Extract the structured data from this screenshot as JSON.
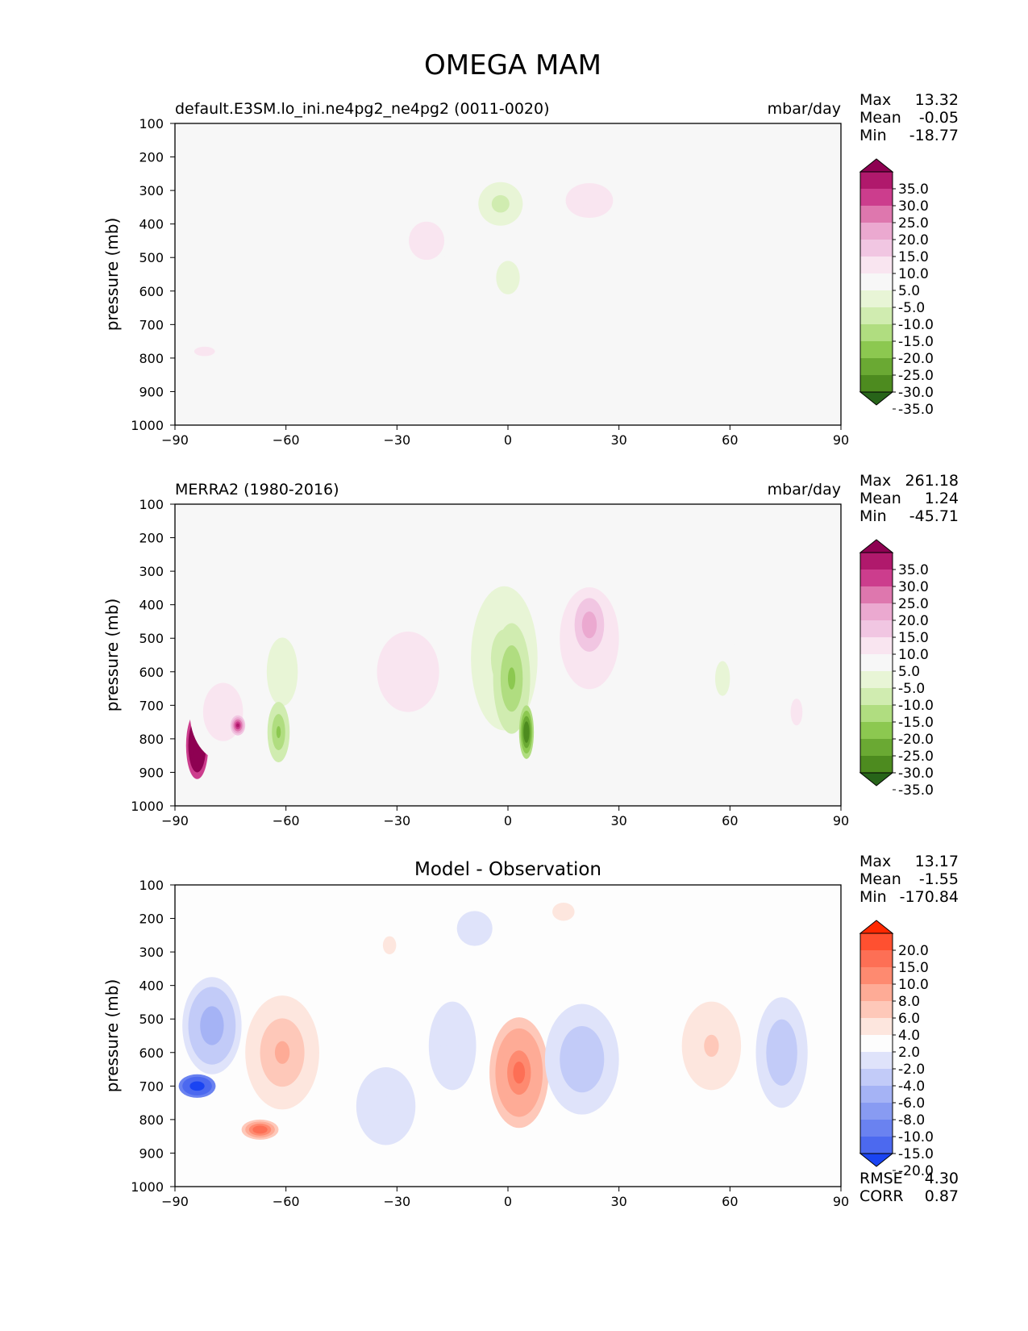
{
  "figure": {
    "title": "OMEGA MAM"
  },
  "chart_data": [
    {
      "type": "heatmap",
      "title": "default.E3SM.lo_ini.ne4pg2_ne4pg2 (0011-0020)",
      "units": "mbar/day",
      "ylabel": "pressure (mb)",
      "xlim": [
        -90,
        90
      ],
      "ylim": [
        1000,
        100
      ],
      "xticks": [
        "−90",
        "−60",
        "−30",
        "0",
        "30",
        "60",
        "90"
      ],
      "yticks": [
        "100",
        "200",
        "300",
        "400",
        "500",
        "600",
        "700",
        "800",
        "900",
        "1000"
      ],
      "stats": [
        {
          "label": "Max",
          "value": "13.32"
        },
        {
          "label": "Mean",
          "value": "-0.05"
        },
        {
          "label": "Min",
          "value": "-18.77"
        }
      ],
      "colorbar": {
        "levels": [
          "35.0",
          "30.0",
          "25.0",
          "20.0",
          "15.0",
          "10.0",
          "5.0",
          "-5.0",
          "-10.0",
          "-15.0",
          "-20.0",
          "-25.0",
          "-30.0",
          "-35.0"
        ],
        "colors": [
          "#8e0152",
          "#b0196c",
          "#cc3d8d",
          "#de77ae",
          "#eba9d0",
          "#f1c6e2",
          "#f9e5f0",
          "#f7f7f7",
          "#e8f5d6",
          "#d0ecb0",
          "#b0dd80",
          "#8cc850",
          "#6aa933",
          "#4d8b1f",
          "#276419"
        ]
      },
      "features": [
        {
          "lon": -22,
          "p": 450,
          "lon_w": 8,
          "p_h": 190,
          "value": 8
        },
        {
          "lon": -2,
          "p": 340,
          "lon_w": 6,
          "p_h": 130,
          "value": -13
        },
        {
          "lon": 0,
          "p": 560,
          "lon_w": 8,
          "p_h": 250,
          "value": -6
        },
        {
          "lon": 22,
          "p": 330,
          "lon_w": 8,
          "p_h": 130,
          "value": 9
        },
        {
          "lon": 22,
          "p": 550,
          "lon_w": 6,
          "p_h": 190,
          "value": 4
        },
        {
          "lon": -82,
          "p": 780,
          "lon_w": 7,
          "p_h": 70,
          "value": 6
        }
      ]
    },
    {
      "type": "heatmap",
      "title": "MERRA2 (1980-2016)",
      "units": "mbar/day",
      "ylabel": "pressure (mb)",
      "xlim": [
        -90,
        90
      ],
      "ylim": [
        1000,
        100
      ],
      "xticks": [
        "−90",
        "−60",
        "−30",
        "0",
        "30",
        "60",
        "90"
      ],
      "yticks": [
        "100",
        "200",
        "300",
        "400",
        "500",
        "600",
        "700",
        "800",
        "900",
        "1000"
      ],
      "stats": [
        {
          "label": "Max",
          "value": "261.18"
        },
        {
          "label": "Mean",
          "value": "1.24"
        },
        {
          "label": "Min",
          "value": "-45.71"
        }
      ],
      "colorbar": {
        "levels": [
          "35.0",
          "30.0",
          "25.0",
          "20.0",
          "15.0",
          "10.0",
          "5.0",
          "-5.0",
          "-10.0",
          "-15.0",
          "-20.0",
          "-25.0",
          "-30.0",
          "-35.0"
        ],
        "colors": [
          "#8e0152",
          "#b0196c",
          "#cc3d8d",
          "#de77ae",
          "#eba9d0",
          "#f1c6e2",
          "#f9e5f0",
          "#f7f7f7",
          "#e8f5d6",
          "#d0ecb0",
          "#b0dd80",
          "#8cc850",
          "#6aa933",
          "#4d8b1f",
          "#276419"
        ]
      },
      "features": [
        {
          "lon": -84,
          "p": 820,
          "lon_w": 3,
          "p_h": 200,
          "value": 60
        },
        {
          "lon": -77,
          "p": 720,
          "lon_w": 9,
          "p_h": 290,
          "value": 8
        },
        {
          "lon": -73,
          "p": 760,
          "lon_w": 2,
          "p_h": 60,
          "value": 30
        },
        {
          "lon": -61,
          "p": 600,
          "lon_w": 7,
          "p_h": 340,
          "value": -8
        },
        {
          "lon": -62,
          "p": 780,
          "lon_w": 3,
          "p_h": 180,
          "value": -22
        },
        {
          "lon": -27,
          "p": 600,
          "lon_w": 14,
          "p_h": 400,
          "value": 8
        },
        {
          "lon": -1,
          "p": 560,
          "lon_w": 9,
          "p_h": 430,
          "value": -12
        },
        {
          "lon": 1,
          "p": 620,
          "lon_w": 5,
          "p_h": 330,
          "value": -22
        },
        {
          "lon": 5,
          "p": 780,
          "lon_w": 2,
          "p_h": 160,
          "value": -35
        },
        {
          "lon": 22,
          "p": 500,
          "lon_w": 10,
          "p_h": 380,
          "value": 10
        },
        {
          "lon": 22,
          "p": 460,
          "lon_w": 5,
          "p_h": 200,
          "value": 18
        },
        {
          "lon": 58,
          "p": 620,
          "lon_w": 5,
          "p_h": 260,
          "value": -6
        },
        {
          "lon": 78,
          "p": 720,
          "lon_w": 4,
          "p_h": 200,
          "value": 6
        }
      ]
    },
    {
      "type": "heatmap",
      "title": "Model - Observation",
      "units": "",
      "ylabel": "pressure (mb)",
      "xlim": [
        -90,
        90
      ],
      "ylim": [
        1000,
        100
      ],
      "xticks": [
        "−90",
        "−60",
        "−30",
        "0",
        "30",
        "60",
        "90"
      ],
      "yticks": [
        "100",
        "200",
        "300",
        "400",
        "500",
        "600",
        "700",
        "800",
        "900",
        "1000"
      ],
      "stats": [
        {
          "label": "Max",
          "value": "13.17"
        },
        {
          "label": "Mean",
          "value": "-1.55"
        },
        {
          "label": "Min",
          "value": "-170.84"
        }
      ],
      "extra_stats": [
        {
          "label": "RMSE",
          "value": "4.30"
        },
        {
          "label": "CORR",
          "value": "0.87"
        }
      ],
      "colorbar": {
        "levels": [
          "20.0",
          "15.0",
          "10.0",
          "8.0",
          "6.0",
          "4.0",
          "2.0",
          "-2.0",
          "-4.0",
          "-6.0",
          "-8.0",
          "-10.0",
          "-15.0",
          "-20.0"
        ],
        "colors": [
          "#ff2800",
          "#ff5030",
          "#fd6f55",
          "#fe8a70",
          "#feab96",
          "#fec8b9",
          "#fde6de",
          "#fdfdfd",
          "#dfe3fa",
          "#c2cbf8",
          "#a5b3f5",
          "#889bf2",
          "#6a82f0",
          "#4c69ef",
          "#1a44f2"
        ]
      },
      "features": [
        {
          "lon": -80,
          "p": 520,
          "lon_w": 8,
          "p_h": 290,
          "value": -7
        },
        {
          "lon": -84,
          "p": 700,
          "lon_w": 5,
          "p_h": 70,
          "value": -25
        },
        {
          "lon": -61,
          "p": 600,
          "lon_w": 10,
          "p_h": 340,
          "value": 6
        },
        {
          "lon": -67,
          "p": 830,
          "lon_w": 5,
          "p_h": 60,
          "value": 12
        },
        {
          "lon": -33,
          "p": 760,
          "lon_w": 10,
          "p_h": 290,
          "value": -4
        },
        {
          "lon": -15,
          "p": 580,
          "lon_w": 8,
          "p_h": 330,
          "value": -4
        },
        {
          "lon": -9,
          "p": 230,
          "lon_w": 6,
          "p_h": 130,
          "value": -4
        },
        {
          "lon": 3,
          "p": 660,
          "lon_w": 8,
          "p_h": 330,
          "value": 10
        },
        {
          "lon": 15,
          "p": 180,
          "lon_w": 5,
          "p_h": 90,
          "value": 3
        },
        {
          "lon": 20,
          "p": 620,
          "lon_w": 10,
          "p_h": 330,
          "value": -6
        },
        {
          "lon": 55,
          "p": 580,
          "lon_w": 10,
          "p_h": 330,
          "value": 4
        },
        {
          "lon": 74,
          "p": 600,
          "lon_w": 7,
          "p_h": 330,
          "value": -6
        },
        {
          "lon": -32,
          "p": 280,
          "lon_w": 3,
          "p_h": 90,
          "value": 3
        }
      ]
    }
  ]
}
